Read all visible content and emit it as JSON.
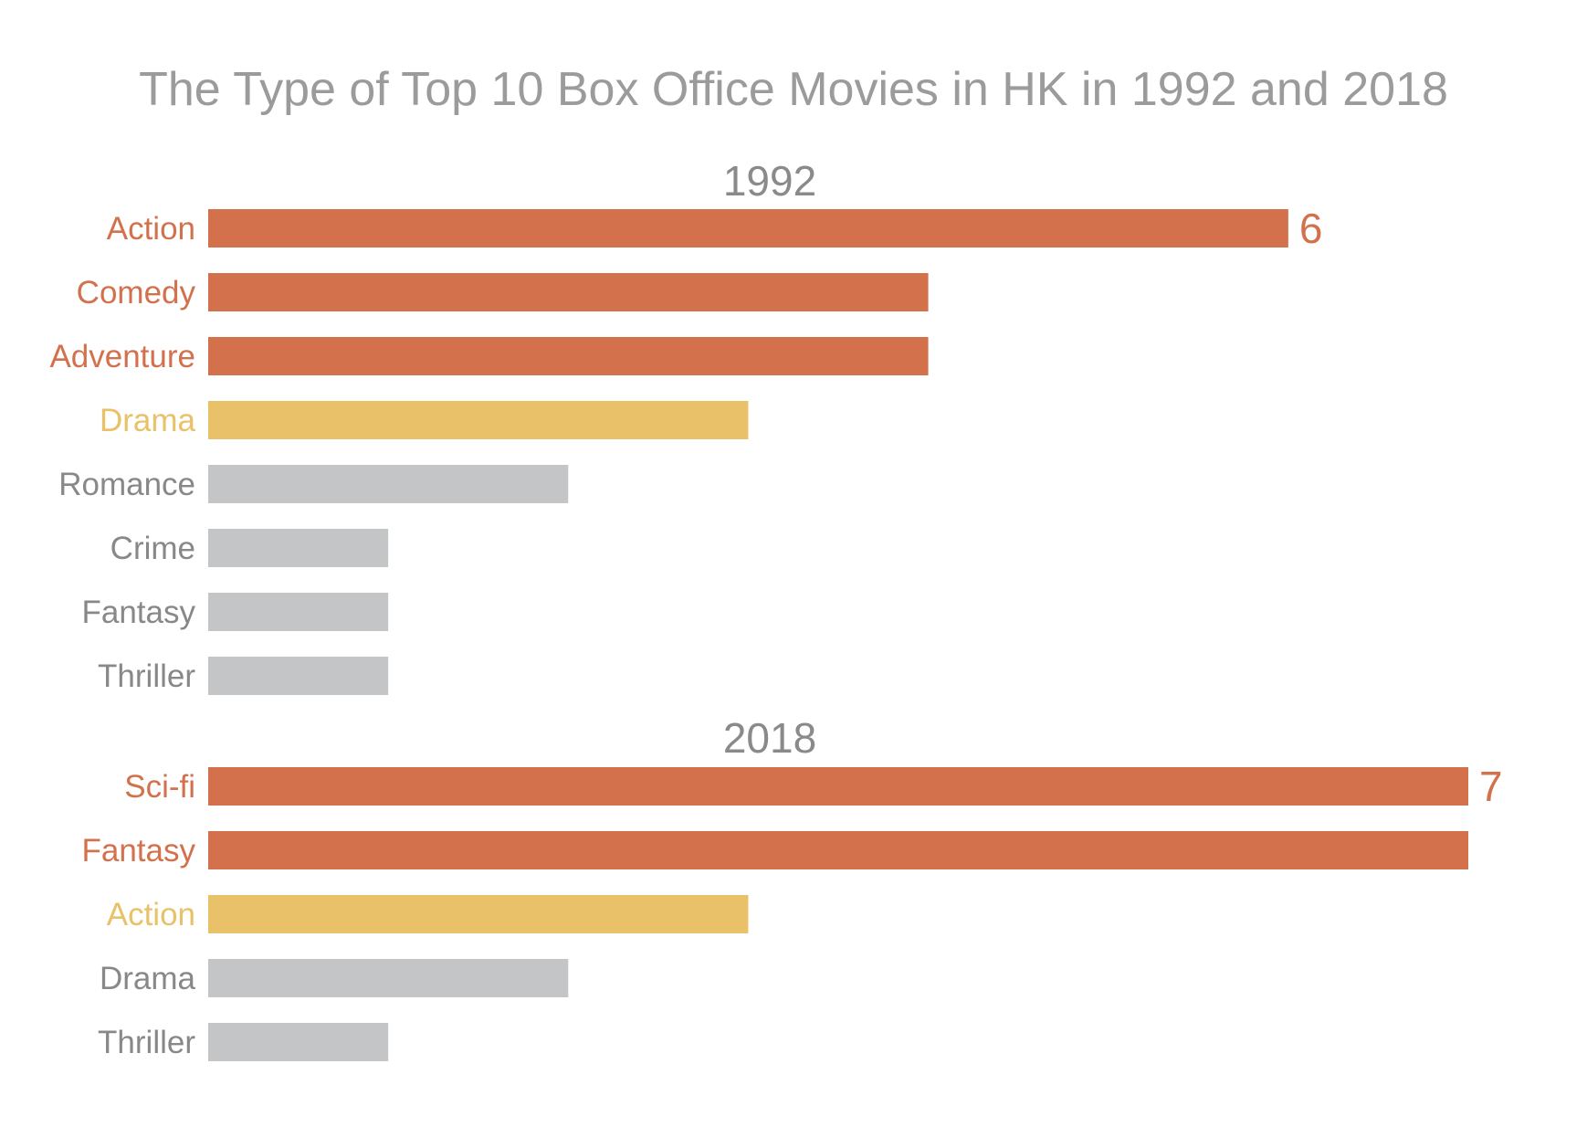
{
  "colors": {
    "high": "#d3714d",
    "mid": "#e8c168",
    "low": "#c4c5c7",
    "label_low": "#888888",
    "title": "#9b9b9b",
    "panel_title": "#8a8a8a"
  },
  "chart_data": {
    "type": "bar",
    "orientation": "horizontal",
    "title": "The Type of Top 10 Box Office Movies in HK in 1992 and 2018",
    "xlim": [
      0,
      7
    ],
    "grid": false,
    "panels": [
      {
        "title": "1992",
        "categories": [
          "Action",
          "Comedy",
          "Adventure",
          "Drama",
          "Romance",
          "Crime",
          "Fantasy",
          "Thriller"
        ],
        "values": [
          6,
          4,
          4,
          3,
          2,
          1,
          1,
          1
        ],
        "tiers": [
          "high",
          "high",
          "high",
          "mid",
          "low",
          "low",
          "low",
          "low"
        ],
        "data_labels": [
          "6",
          "",
          "",
          "",
          "",
          "",
          "",
          ""
        ]
      },
      {
        "title": "2018",
        "categories": [
          "Sci-fi",
          "Fantasy",
          "Action",
          "Drama",
          "Thriller"
        ],
        "values": [
          7,
          7,
          3,
          2,
          1
        ],
        "tiers": [
          "high",
          "high",
          "mid",
          "low",
          "low"
        ],
        "data_labels": [
          "7",
          "",
          "",
          "",
          ""
        ]
      }
    ]
  }
}
